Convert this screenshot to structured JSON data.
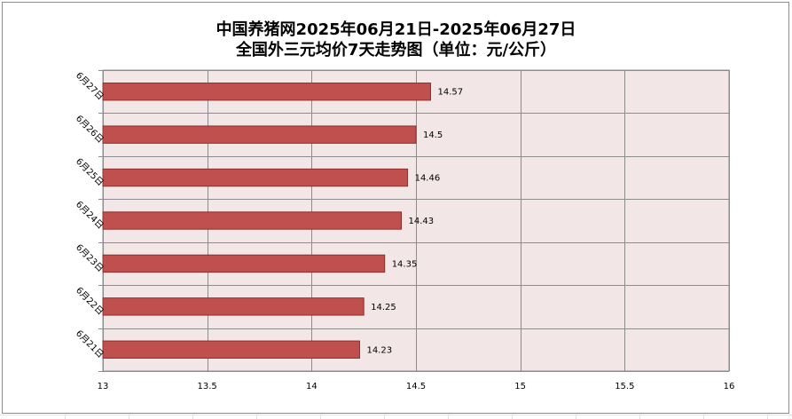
{
  "chart_data": {
    "type": "bar",
    "orientation": "horizontal",
    "title": "中国养猪网2025年06月21日-2025年06月27日",
    "subtitle": "全国外三元均价7天走势图（单位：元/公斤）",
    "categories": [
      "6月21日",
      "6月22日",
      "6月23日",
      "6月24日",
      "6月25日",
      "6月26日",
      "6月27日"
    ],
    "values": [
      14.23,
      14.25,
      14.35,
      14.43,
      14.46,
      14.5,
      14.57
    ],
    "value_labels": [
      "14.23",
      "14.25",
      "14.35",
      "14.43",
      "14.46",
      "14.5",
      "14.57"
    ],
    "xlim": [
      13,
      16
    ],
    "xticks": [
      "13",
      "13.5",
      "14",
      "14.5",
      "15",
      "15.5",
      "16"
    ],
    "xtick_values": [
      13,
      13.5,
      14,
      14.5,
      15,
      15.5,
      16
    ],
    "grid": true,
    "legend": "none",
    "colors": {
      "bar": "#c0504d",
      "bar_border": "#8b2f2c",
      "plot_bg": "#f2e6e6",
      "grid": "#8c8c8c"
    }
  }
}
